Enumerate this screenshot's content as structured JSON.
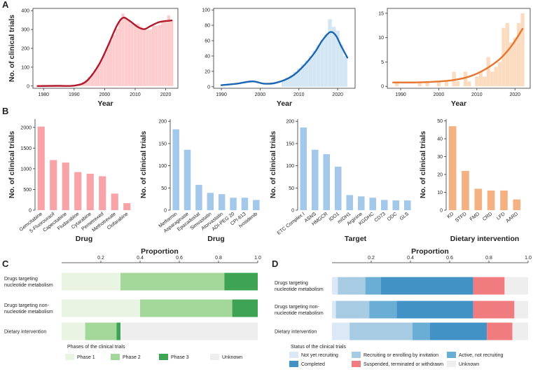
{
  "panels": {
    "A": "A",
    "B": "B",
    "C": "C",
    "D": "D"
  },
  "chart_data": [
    {
      "id": "a1",
      "type": "bar",
      "x": [
        1979,
        1980,
        1981,
        1982,
        1983,
        1984,
        1985,
        1986,
        1987,
        1988,
        1989,
        1990,
        1991,
        1992,
        1993,
        1994,
        1995,
        1996,
        1997,
        1998,
        1999,
        2000,
        2001,
        2002,
        2003,
        2004,
        2005,
        2006,
        2007,
        2008,
        2009,
        2010,
        2011,
        2012,
        2013,
        2014,
        2015,
        2016,
        2017,
        2018,
        2019,
        2020,
        2021,
        2022
      ],
      "values": [
        2,
        1,
        2,
        1,
        2,
        1,
        2,
        2,
        3,
        3,
        5,
        6,
        10,
        14,
        22,
        32,
        48,
        66,
        88,
        112,
        140,
        172,
        205,
        240,
        272,
        305,
        340,
        385,
        360,
        345,
        330,
        330,
        330,
        315,
        305,
        298,
        300,
        320,
        320,
        325,
        345,
        350,
        375,
        345
      ],
      "trend": [
        [
          1978,
          0
        ],
        [
          1985,
          1
        ],
        [
          1990,
          2
        ],
        [
          1994,
          25
        ],
        [
          1998,
          110
        ],
        [
          2001,
          210
        ],
        [
          2004,
          320
        ],
        [
          2006,
          362
        ],
        [
          2008,
          348
        ],
        [
          2011,
          312
        ],
        [
          2013,
          302
        ],
        [
          2015,
          318
        ],
        [
          2018,
          340
        ],
        [
          2022,
          348
        ]
      ],
      "color": "#fdcdcd",
      "trend_color": "#b2182b",
      "xticks": [
        1980,
        1990,
        2000,
        2010,
        2020
      ],
      "xlim": [
        1976.5,
        2024
      ],
      "yticks": [
        0,
        100,
        200,
        300,
        400
      ],
      "ylim": [
        -12,
        412
      ],
      "ylabel": "No. of clinical trials",
      "xlabel": "Year"
    },
    {
      "id": "a2",
      "type": "bar",
      "x": [
        2006,
        2007,
        2008,
        2009,
        2010,
        2011,
        2012,
        2013,
        2014,
        2015,
        2016,
        2017,
        2018,
        2019,
        2020,
        2021,
        2022
      ],
      "values": [
        8,
        12,
        15,
        19,
        24,
        29,
        34,
        40,
        47,
        54,
        61,
        68,
        88,
        78,
        73,
        55,
        40
      ],
      "trend": [
        [
          1990,
          2
        ],
        [
          1994,
          4
        ],
        [
          1998,
          7
        ],
        [
          2001,
          4
        ],
        [
          2004,
          5
        ],
        [
          2008,
          13
        ],
        [
          2011,
          26
        ],
        [
          2014,
          44
        ],
        [
          2016,
          60
        ],
        [
          2018,
          71
        ],
        [
          2019.5,
          67
        ],
        [
          2021,
          52
        ],
        [
          2022.5,
          38
        ]
      ],
      "color": "#d4e5f4",
      "trend_color": "#1a66b5",
      "xticks": [
        1990,
        2000,
        2010,
        2020
      ],
      "xlim": [
        1988,
        2024.5
      ],
      "yticks": [
        0,
        20,
        40,
        60,
        80,
        100
      ],
      "ylim": [
        -2,
        102
      ],
      "ylabel": "",
      "xlabel": "Year"
    },
    {
      "id": "a3",
      "type": "bar",
      "x": [
        1989,
        1995,
        1997,
        2000,
        2002,
        2004,
        2005,
        2007,
        2008,
        2010,
        2011,
        2012,
        2013,
        2014,
        2015,
        2016,
        2017,
        2018,
        2019,
        2020,
        2021,
        2022
      ],
      "values": [
        1,
        1,
        1,
        1,
        1,
        3,
        1,
        3,
        1,
        2,
        3,
        2,
        6,
        3,
        4,
        5,
        12,
        13,
        9,
        10,
        13,
        15
      ],
      "trend": [
        [
          1988,
          0.8
        ],
        [
          1994,
          0.8
        ],
        [
          2000,
          1.0
        ],
        [
          2004,
          1.3
        ],
        [
          2008,
          2.0
        ],
        [
          2012,
          3.4
        ],
        [
          2016,
          5.6
        ],
        [
          2019,
          8.2
        ],
        [
          2022,
          11.8
        ]
      ],
      "color": "#fcdcc0",
      "trend_color": "#e8762e",
      "xticks": [
        1990,
        2000,
        2010,
        2020
      ],
      "xlim": [
        1986.5,
        2024
      ],
      "yticks": [
        0,
        5,
        10,
        15
      ],
      "ylim": [
        -0.4,
        16
      ],
      "ylabel": "",
      "xlabel": "Year"
    },
    {
      "id": "b1",
      "type": "bar",
      "categories": [
        "Gemcitabine",
        "5-Fluorouracil",
        "Capecitabine",
        "Fludarabine",
        "Cytarabine",
        "Pemetrexed",
        "Methotrexate",
        "Clofarabine"
      ],
      "values": [
        2020,
        1210,
        1150,
        920,
        880,
        820,
        400,
        170
      ],
      "color": "#f8a3a8",
      "yticks": [
        0,
        500,
        1000,
        1500,
        2000
      ],
      "ylim": [
        0,
        2200
      ],
      "ylabel": "No. of clinical trials",
      "xlabel": "Drug"
    },
    {
      "id": "b2",
      "type": "bar",
      "categories": [
        "Metformin",
        "Asparaginase",
        "Epacadostat",
        "Simvastatin",
        "Atorvastatin",
        "ADI-PEG 20",
        "CPI-613",
        "Ivosidenib"
      ],
      "values": [
        182,
        136,
        57,
        39,
        36,
        28,
        28,
        23
      ],
      "color": "#a4c8ea",
      "yticks": [
        0,
        50,
        100,
        150,
        200
      ],
      "ylim": [
        0,
        205
      ],
      "ylabel": "No. of clinical trials",
      "xlabel": "Drug"
    },
    {
      "id": "b3",
      "type": "bar",
      "categories": [
        "ETC Complex I",
        "ASNS",
        "HMGCR",
        "IDO1",
        "mIDH1",
        "Arginine",
        "KGDHC",
        "CD73",
        "ODC",
        "GLS"
      ],
      "values": [
        186,
        136,
        126,
        98,
        34,
        31,
        28,
        23,
        22,
        22
      ],
      "color": "#a4c8ea",
      "yticks": [
        0,
        50,
        100,
        150,
        200
      ],
      "ylim": [
        0,
        205
      ],
      "ylabel": "No. of clinical trials",
      "xlabel": "Target"
    },
    {
      "id": "b4",
      "type": "bar",
      "categories": [
        "KD",
        "STFD",
        "FMD",
        "CRD",
        "LFD",
        "AARD"
      ],
      "values": [
        47,
        22,
        12,
        11,
        11,
        6
      ],
      "color": "#f4b182",
      "yticks": [
        0,
        10,
        20,
        30,
        40,
        50
      ],
      "ylim": [
        0,
        51
      ],
      "ylabel": "No. of clinical trials",
      "xlabel": "Dietary intervention"
    }
  ],
  "panel_c": {
    "title": "Proportion",
    "axis_ticks": [
      0.2,
      0.4,
      0.6,
      0.8,
      1.0
    ],
    "rows": [
      {
        "label": [
          "Drugs targeting",
          "nucleotide metabolism"
        ],
        "values": [
          0.3,
          0.53,
          0.17,
          0.0
        ]
      },
      {
        "label": [
          "Drugs targeting non-",
          "nucleotide metabolism"
        ],
        "values": [
          0.4,
          0.47,
          0.13,
          0.0
        ]
      },
      {
        "label": [
          "Dietary intervention"
        ],
        "values": [
          0.12,
          0.16,
          0.02,
          0.7
        ]
      }
    ],
    "legend_title": "Phases of the clinical trials",
    "legend": [
      {
        "label": "Phase 1",
        "color": "#e9f4e2"
      },
      {
        "label": "Phase 2",
        "color": "#a3d89a"
      },
      {
        "label": "Phase 3",
        "color": "#3ea453"
      },
      {
        "label": "Unknown",
        "color": "#eeeeee"
      }
    ]
  },
  "panel_d": {
    "title": "Proportion",
    "axis_ticks": [
      0.2,
      0.4,
      0.6,
      0.8,
      1.0
    ],
    "rows": [
      {
        "label": [
          "Drugs targeting",
          "nucleotide metabolism"
        ],
        "values": [
          0.03,
          0.14,
          0.08,
          0.47,
          0.16,
          0.12
        ]
      },
      {
        "label": [
          "Drugs targeting non-",
          "nucleotide metabolism"
        ],
        "values": [
          0.02,
          0.17,
          0.14,
          0.39,
          0.21,
          0.07
        ]
      },
      {
        "label": [
          "Dietary intervention"
        ],
        "values": [
          0.09,
          0.32,
          0.09,
          0.29,
          0.13,
          0.08
        ]
      }
    ],
    "legend_title": "Status of the clinical trials",
    "legend": [
      {
        "label": "Not yet recruiting",
        "color": "#dbe8f5"
      },
      {
        "label": "Recruiting or enrolling by invitation",
        "color": "#a6cbe3"
      },
      {
        "label": "Active, not recruiting",
        "color": "#6aaed6"
      },
      {
        "label": "Completed",
        "color": "#4292c6"
      },
      {
        "label": "Suspended, terminated or withdrawn",
        "color": "#f07c80"
      },
      {
        "label": "Unknown",
        "color": "#eeeeee"
      }
    ]
  }
}
